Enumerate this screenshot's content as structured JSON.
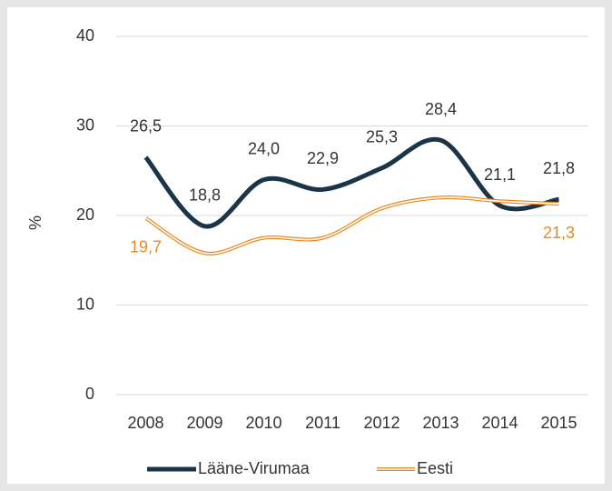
{
  "chart_data": {
    "type": "line",
    "categories": [
      "2008",
      "2009",
      "2010",
      "2011",
      "2012",
      "2013",
      "2014",
      "2015"
    ],
    "series": [
      {
        "name": "Lääne-Virumaa",
        "color": "#1b3548",
        "values": [
          26.5,
          18.8,
          24.0,
          22.9,
          25.3,
          28.4,
          21.1,
          21.8
        ],
        "value_labels": [
          "26,5",
          "18,8",
          "24,0",
          "22,9",
          "25,3",
          "28,4",
          "21,1",
          "21,8"
        ]
      },
      {
        "name": "Eesti",
        "color": "#e8891e",
        "values": [
          19.7,
          15.8,
          17.5,
          17.5,
          20.8,
          22.0,
          21.6,
          21.3
        ],
        "value_labels": [
          "19,7",
          null,
          null,
          null,
          null,
          null,
          null,
          "21,3"
        ]
      }
    ],
    "y_label": "%",
    "ylim": [
      0,
      40
    ],
    "yticks": [
      0,
      10,
      20,
      30,
      40
    ],
    "grid": true,
    "smooth": true,
    "legend": "bottom"
  }
}
